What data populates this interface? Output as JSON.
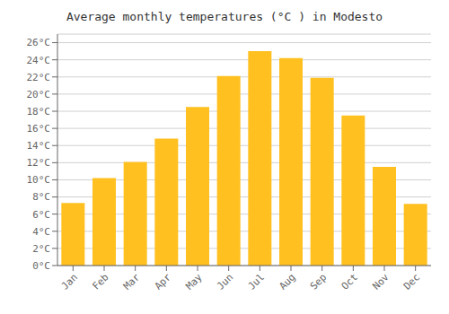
{
  "chart_data": {
    "type": "bar",
    "title": "Average monthly temperatures (°C ) in Modesto",
    "categories": [
      "Jan",
      "Feb",
      "Mar",
      "Apr",
      "May",
      "Jun",
      "Jul",
      "Aug",
      "Sep",
      "Oct",
      "Nov",
      "Dec"
    ],
    "values": [
      7.3,
      10.2,
      12.1,
      14.8,
      18.5,
      22.1,
      25.0,
      24.2,
      21.9,
      17.5,
      11.5,
      7.2
    ],
    "color": "#FFC020",
    "ylim": [
      0,
      27
    ],
    "yticks": [
      {
        "value": 0,
        "label": "0°C"
      },
      {
        "value": 2,
        "label": "2°C"
      },
      {
        "value": 4,
        "label": "4°C"
      },
      {
        "value": 6,
        "label": "6°C"
      },
      {
        "value": 8,
        "label": "8°C"
      },
      {
        "value": 10,
        "label": "10°C"
      },
      {
        "value": 12,
        "label": "12°C"
      },
      {
        "value": 14,
        "label": "14°C"
      },
      {
        "value": 16,
        "label": "16°C"
      },
      {
        "value": 18,
        "label": "18°C"
      },
      {
        "value": 20,
        "label": "20°C"
      },
      {
        "value": 22,
        "label": "22°C"
      },
      {
        "value": 24,
        "label": "24°C"
      },
      {
        "value": 26,
        "label": "26°C"
      }
    ],
    "grid": true
  }
}
